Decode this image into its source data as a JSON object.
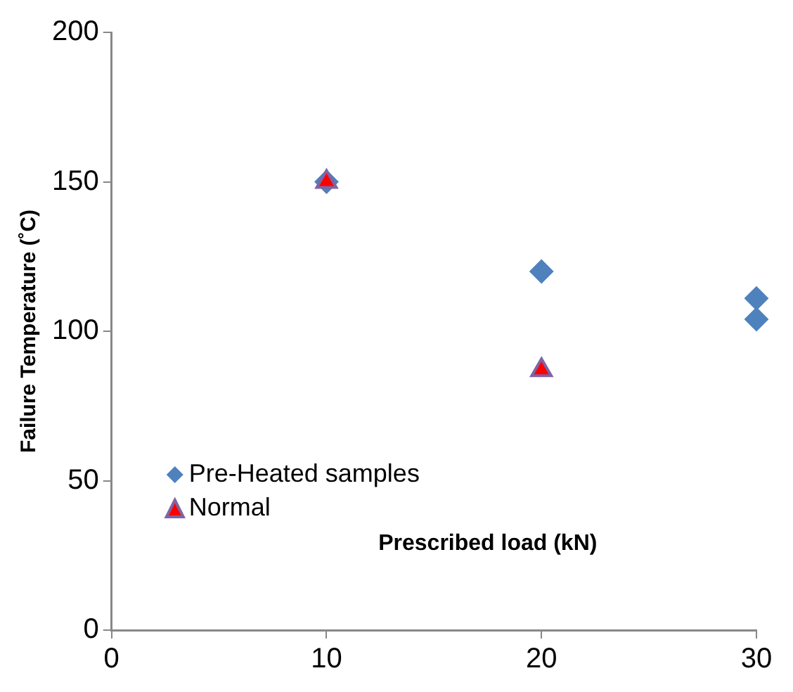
{
  "chart_data": {
    "type": "scatter",
    "xlabel": "Prescribed load (kN)",
    "ylabel": "Failure Temperature (˚C)",
    "xlim": [
      0,
      30
    ],
    "xticks": [
      0,
      10,
      20,
      30
    ],
    "ylim": [
      0,
      200
    ],
    "yticks": [
      0,
      50,
      100,
      150,
      200
    ],
    "grid": false,
    "legend": "bottom left",
    "series": [
      {
        "name": "Pre-Heated samples",
        "color": "#4f81bd",
        "marker": "diamond",
        "x": [
          10,
          20,
          30,
          30
        ],
        "values": [
          150,
          120,
          111,
          104
        ]
      },
      {
        "name": "Normal",
        "color": "#ff0000",
        "marker": "triangle",
        "x": [
          10,
          20
        ],
        "values": [
          150,
          87
        ]
      }
    ]
  }
}
